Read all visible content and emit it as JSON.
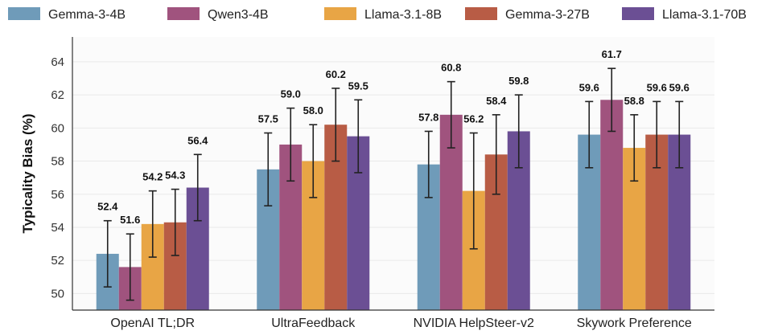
{
  "chart_data": {
    "type": "bar",
    "title": "",
    "xlabel": "",
    "ylabel": "Typicality Bias (%)",
    "ylim": [
      49,
      65.5
    ],
    "yticks": [
      50,
      52,
      54,
      56,
      58,
      60,
      62,
      64
    ],
    "grid": true,
    "legend_position": "top",
    "categories": [
      "OpenAI TL;DR",
      "UltraFeedback",
      "NVIDIA HelpSteer-v2",
      "Skywork Preference"
    ],
    "series": [
      {
        "name": "Gemma-3-4B",
        "color": "#6f9bb9",
        "values": [
          52.4,
          57.5,
          57.8,
          59.6
        ],
        "errors": [
          2.0,
          2.2,
          2.0,
          2.0
        ],
        "labels": [
          "52.4",
          "57.5",
          "57.8",
          "59.6"
        ]
      },
      {
        "name": "Qwen3-4B",
        "color": "#a0537e",
        "values": [
          51.6,
          59.0,
          60.8,
          61.7
        ],
        "errors": [
          2.0,
          2.2,
          2.0,
          1.9
        ],
        "labels": [
          "51.6",
          "59.0",
          "60.8",
          "61.7"
        ]
      },
      {
        "name": "Llama-3.1-8B",
        "color": "#e8a545",
        "values": [
          54.2,
          58.0,
          56.2,
          58.8
        ],
        "errors": [
          2.0,
          2.2,
          3.5,
          2.0
        ],
        "labels": [
          "54.2",
          "58.0",
          "56.2",
          "58.8"
        ]
      },
      {
        "name": "Gemma-3-27B",
        "color": "#b85c45",
        "values": [
          54.3,
          60.2,
          58.4,
          59.6
        ],
        "errors": [
          2.0,
          2.2,
          2.4,
          2.0
        ],
        "labels": [
          "54.3",
          "60.2",
          "58.4",
          "59.6"
        ]
      },
      {
        "name": "Llama-3.1-70B",
        "color": "#6b4f94",
        "values": [
          56.4,
          59.5,
          59.8,
          59.6
        ],
        "errors": [
          2.0,
          2.2,
          2.2,
          2.0
        ],
        "labels": [
          "56.4",
          "59.5",
          "59.8",
          "59.6"
        ]
      }
    ]
  }
}
